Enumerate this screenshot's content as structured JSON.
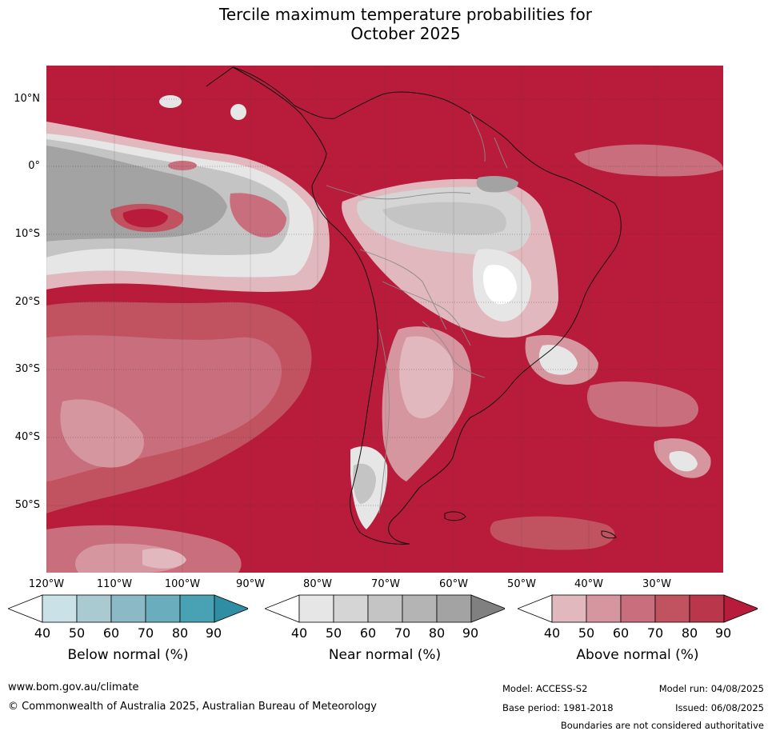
{
  "title_line1": "Tercile maximum temperature probabilities for",
  "title_line2": "October 2025",
  "lat_labels": [
    "10°N",
    "0°",
    "10°S",
    "20°S",
    "30°S",
    "40°S",
    "50°S"
  ],
  "lon_labels": [
    "120°W",
    "110°W",
    "100°W",
    "90°W",
    "80°W",
    "70°W",
    "60°W",
    "50°W",
    "40°W",
    "30°W"
  ],
  "legends": [
    {
      "caption": "Below normal (%)",
      "ticks": [
        "40",
        "50",
        "60",
        "70",
        "80",
        "90"
      ],
      "colors": [
        "#ffffff",
        "#c9e1e7",
        "#a9cad1",
        "#8bb9c5",
        "#6aadbc",
        "#48a2b3",
        "#2f8ea3"
      ]
    },
    {
      "caption": "Near normal (%)",
      "ticks": [
        "40",
        "50",
        "60",
        "70",
        "80",
        "90"
      ],
      "colors": [
        "#ffffff",
        "#e6e6e6",
        "#d5d5d5",
        "#c4c4c4",
        "#b4b4b4",
        "#a3a3a3",
        "#808080"
      ]
    },
    {
      "caption": "Above normal (%)",
      "ticks": [
        "40",
        "50",
        "60",
        "70",
        "80",
        "90"
      ],
      "colors": [
        "#ffffff",
        "#e2b8bf",
        "#d6969f",
        "#c96e7c",
        "#c1525f",
        "#b9364b",
        "#b81c3a"
      ]
    }
  ],
  "footer": {
    "website": "www.bom.gov.au/climate",
    "copyright": "© Commonwealth of Australia 2025, Australian Bureau of Meteorology",
    "model": "Model: ACCESS-S2",
    "base_period": "Base period: 1981-2018",
    "model_run": "Model run: 04/08/2025",
    "issued": "Issued: 06/08/2025",
    "disclaimer": "Boundaries are not considered authoritative"
  }
}
